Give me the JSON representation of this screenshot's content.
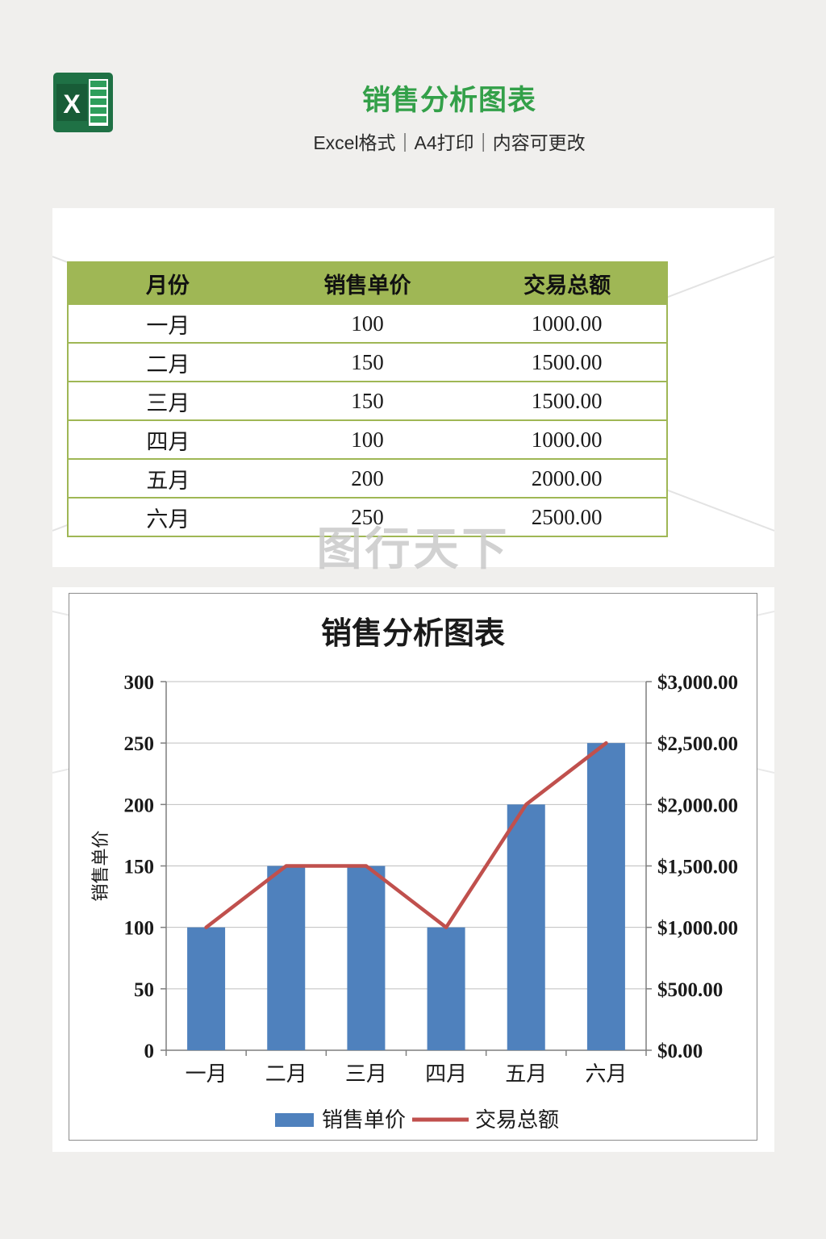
{
  "page": {
    "title": "销售分析图表",
    "subtitle": "Excel格式｜A4打印｜内容可更改",
    "watermark": "图行天下",
    "accent_green": "#33a049"
  },
  "table": {
    "headers": [
      "月份",
      "销售单价",
      "交易总额"
    ],
    "rows": [
      [
        "一月",
        "100",
        "1000.00"
      ],
      [
        "二月",
        "150",
        "1500.00"
      ],
      [
        "三月",
        "150",
        "1500.00"
      ],
      [
        "四月",
        "100",
        "1000.00"
      ],
      [
        "五月",
        "200",
        "2000.00"
      ],
      [
        "六月",
        "250",
        "2500.00"
      ]
    ],
    "header_bg": "#9fb755",
    "border_color": "#9fb755"
  },
  "chart_data": {
    "type": "bar",
    "subtype": "combo bar+line dual-axis",
    "title": "销售分析图表",
    "categories": [
      "一月",
      "二月",
      "三月",
      "四月",
      "五月",
      "六月"
    ],
    "series": [
      {
        "name": "销售单价",
        "type": "bar",
        "axis": "left",
        "color": "#4F81BD",
        "values": [
          100,
          150,
          150,
          100,
          200,
          250
        ]
      },
      {
        "name": "交易总额",
        "type": "line",
        "axis": "right",
        "color": "#C0504D",
        "values": [
          1000,
          1500,
          1500,
          1000,
          2000,
          2500
        ]
      }
    ],
    "left_axis": {
      "label": "销售单价",
      "min": 0,
      "max": 300,
      "step": 50,
      "ticks": [
        "0",
        "50",
        "100",
        "150",
        "200",
        "250",
        "300"
      ]
    },
    "right_axis": {
      "min": 0,
      "max": 3000,
      "step": 500,
      "ticks": [
        "$0.00",
        "$500.00",
        "$1,000.00",
        "$1,500.00",
        "$2,000.00",
        "$2,500.00",
        "$3,000.00"
      ]
    },
    "grid": true,
    "legend_position": "bottom"
  }
}
